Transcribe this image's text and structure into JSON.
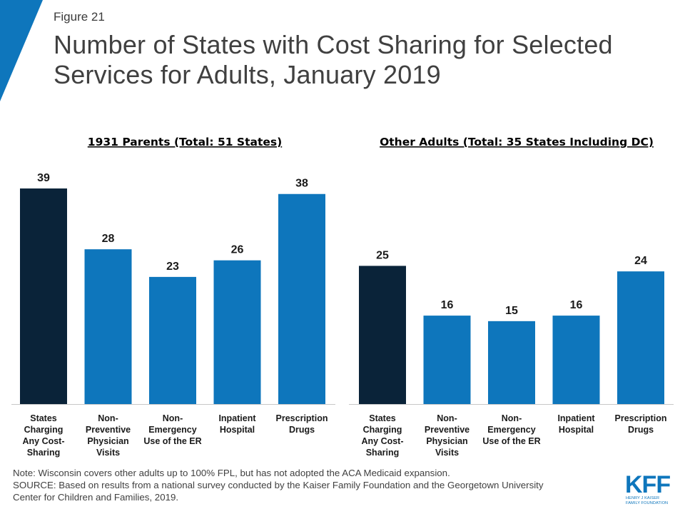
{
  "header": {
    "figure_label": "Figure 21",
    "title": "Number of States with Cost Sharing for Selected Services for Adults, January 2019"
  },
  "colors": {
    "accent": "#0e76bc",
    "bar_primary": "#0e76bc",
    "bar_highlight": "#0a2339",
    "text": "#404040"
  },
  "chart_data": [
    {
      "type": "bar",
      "title": "1931 Parents (Total: 51 States)",
      "categories": [
        [
          "States",
          "Charging",
          "Any Cost-",
          "Sharing"
        ],
        [
          "Non-",
          "Preventive",
          "Physician",
          "Visits"
        ],
        [
          "Non-",
          "Emergency",
          "Use of the ER"
        ],
        [
          "Inpatient",
          "Hospital"
        ],
        [
          "Prescription",
          "Drugs"
        ]
      ],
      "values": [
        39,
        28,
        23,
        26,
        38
      ],
      "highlight_index": 0,
      "xlabel": "",
      "ylabel": "",
      "ylim": [
        0,
        39
      ],
      "grid": false,
      "data_labels": true
    },
    {
      "type": "bar",
      "title": "Other Adults (Total: 35 States Including DC)",
      "categories": [
        [
          "States",
          "Charging",
          "Any Cost-",
          "Sharing"
        ],
        [
          "Non-",
          "Preventive",
          "Physician",
          "Visits"
        ],
        [
          "Non-",
          "Emergency",
          "Use of the ER"
        ],
        [
          "Inpatient",
          "Hospital"
        ],
        [
          "Prescription",
          "Drugs"
        ]
      ],
      "values": [
        25,
        16,
        15,
        16,
        24
      ],
      "highlight_index": 0,
      "xlabel": "",
      "ylabel": "",
      "ylim": [
        0,
        39
      ],
      "grid": false,
      "data_labels": true
    }
  ],
  "footer": {
    "note": "Note: Wisconsin covers other adults up to 100% FPL, but has not adopted the ACA Medicaid expansion.",
    "source_line1": "SOURCE: Based on results from a national survey conducted by the Kaiser Family Foundation and the Georgetown University",
    "source_line2": "Center for Children and Families, 2019."
  },
  "logo": {
    "text": "KFF",
    "subline1": "HENRY J KAISER",
    "subline2": "FAMILY FOUNDATION"
  }
}
